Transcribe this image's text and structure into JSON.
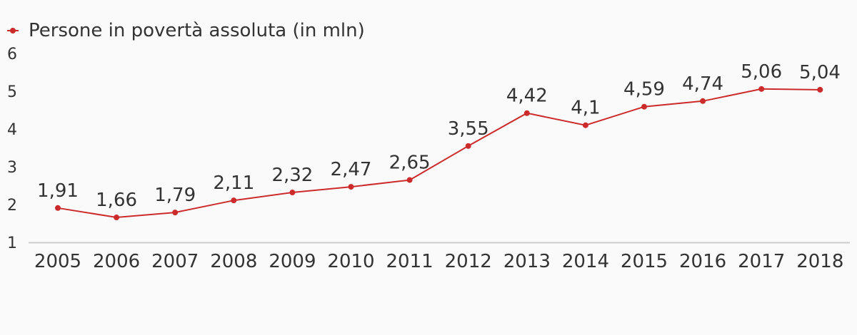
{
  "chart_data": {
    "type": "line",
    "title": "",
    "xlabel": "",
    "ylabel": "",
    "ylim": [
      1,
      6
    ],
    "yticks": [
      "1",
      "2",
      "3",
      "4",
      "5",
      "6"
    ],
    "grid": false,
    "legend_position": "top-left",
    "categories": [
      "2005",
      "2006",
      "2007",
      "2008",
      "2009",
      "2010",
      "2011",
      "2012",
      "2013",
      "2014",
      "2015",
      "2016",
      "2017",
      "2018"
    ],
    "series": [
      {
        "name": "Persone in povertà assoluta (in mln)",
        "color": "#cc2b2b",
        "values": [
          1.91,
          1.66,
          1.79,
          2.11,
          2.32,
          2.47,
          2.65,
          3.55,
          4.42,
          4.1,
          4.59,
          4.74,
          5.06,
          5.04
        ],
        "labels": [
          "1,91",
          "1,66",
          "1,79",
          "2,11",
          "2,32",
          "2,47",
          "2,65",
          "3,55",
          "4,42",
          "4,1",
          "4,59",
          "4,74",
          "5,06",
          "5,04"
        ]
      }
    ],
    "axis_color": "#cccccc"
  }
}
